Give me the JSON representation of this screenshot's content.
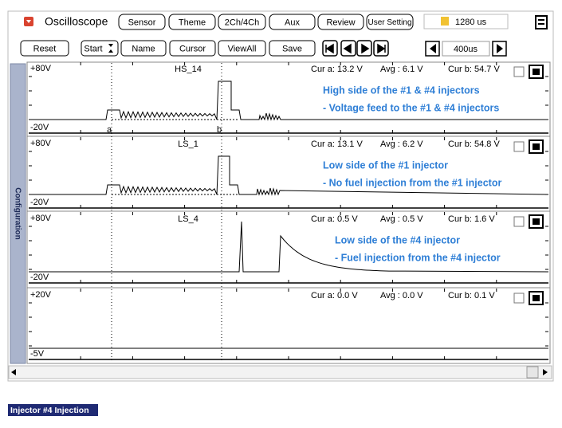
{
  "toolbar": {
    "title": "Oscilloscope",
    "buttons": [
      "Sensor",
      "Theme",
      "2Ch/4Ch",
      "Aux",
      "Review",
      "User Setting"
    ],
    "time_display": "1280 us"
  },
  "controls": {
    "buttons": [
      "Reset",
      "Start",
      "Name",
      "Cursor",
      "ViewAll",
      "Save"
    ],
    "time_div": "400us"
  },
  "side_tab": "Configuration",
  "cursors": [
    "a",
    "b"
  ],
  "channels": [
    {
      "name": "HS_14",
      "top": "+80V",
      "bottom": "-20V",
      "cur_a": "Cur a: 13.2 V",
      "avg": "Avg : 6.1 V",
      "cur_b": "Cur b: 54.7 V",
      "notes": [
        "High side  of the #1 & #4 injectors",
        "- Voltage feed to  the #1 & #4 injectors"
      ]
    },
    {
      "name": "LS_1",
      "top": "+80V",
      "bottom": "-20V",
      "cur_a": "Cur a: 13.1 V",
      "avg": "Avg : 6.2 V",
      "cur_b": "Cur b: 54.8 V",
      "notes": [
        "Low side of the #1 injector",
        "- No fuel injection from   the #1 injector"
      ]
    },
    {
      "name": "LS_4",
      "top": "+80V",
      "bottom": "-20V",
      "cur_a": "Cur a: 0.5 V",
      "avg": "Avg : 0.5 V",
      "cur_b": "Cur b: 1.6 V",
      "notes": [
        "Low side of the #4 injector",
        "- Fuel injection from the #4 injector"
      ]
    },
    {
      "top": "+20V",
      "bottom": "-5V",
      "cur_a": "Cur a: 0.0 V",
      "avg": "Avg : 0.0 V",
      "cur_b": "Cur b: 0.1 V"
    }
  ],
  "caption": "Injector #4 Injection"
}
